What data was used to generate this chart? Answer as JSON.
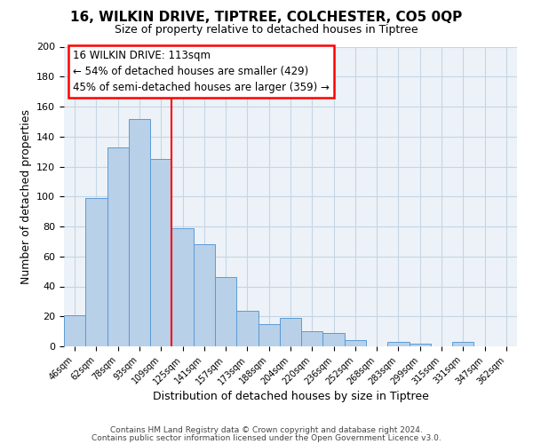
{
  "title": "16, WILKIN DRIVE, TIPTREE, COLCHESTER, CO5 0QP",
  "subtitle": "Size of property relative to detached houses in Tiptree",
  "xlabel": "Distribution of detached houses by size in Tiptree",
  "ylabel": "Number of detached properties",
  "bar_labels": [
    "46sqm",
    "62sqm",
    "78sqm",
    "93sqm",
    "109sqm",
    "125sqm",
    "141sqm",
    "157sqm",
    "173sqm",
    "188sqm",
    "204sqm",
    "220sqm",
    "236sqm",
    "252sqm",
    "268sqm",
    "283sqm",
    "299sqm",
    "315sqm",
    "331sqm",
    "347sqm",
    "362sqm"
  ],
  "bar_values": [
    21,
    99,
    133,
    152,
    125,
    79,
    68,
    46,
    24,
    15,
    19,
    10,
    9,
    4,
    0,
    3,
    2,
    0,
    3,
    0,
    0
  ],
  "bar_color": "#b8d0e8",
  "bar_edge_color": "#5b9bd5",
  "vline_x": 4.5,
  "vline_color": "red",
  "annotation_title": "16 WILKIN DRIVE: 113sqm",
  "annotation_line1": "← 54% of detached houses are smaller (429)",
  "annotation_line2": "45% of semi-detached houses are larger (359) →",
  "annotation_box_color": "white",
  "annotation_box_edge": "red",
  "ylim": [
    0,
    200
  ],
  "yticks": [
    0,
    20,
    40,
    60,
    80,
    100,
    120,
    140,
    160,
    180,
    200
  ],
  "footer1": "Contains HM Land Registry data © Crown copyright and database right 2024.",
  "footer2": "Contains public sector information licensed under the Open Government Licence v3.0.",
  "bg_color": "#edf2f8",
  "grid_color": "#c5d5e5"
}
